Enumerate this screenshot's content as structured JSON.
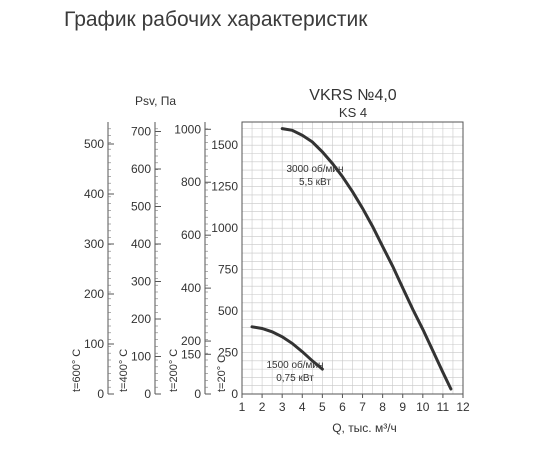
{
  "page": {
    "title": "График рабочих характеристик"
  },
  "chart_data": {
    "type": "line",
    "title": "VKRS №4,0",
    "subtitle": "KS 4",
    "xlabel": "Q, тыс. м³/ч",
    "ylabel": "Psv, Па",
    "xlim": [
      1,
      12
    ],
    "ylim": [
      0,
      1640
    ],
    "grid": true,
    "x_ticks": [
      1,
      2,
      3,
      4,
      5,
      6,
      7,
      8,
      9,
      10,
      11,
      12
    ],
    "y_ticks": [
      0,
      250,
      500,
      750,
      1000,
      1250,
      1500
    ],
    "series": [
      {
        "name": "3000 об/мин 5,5 кВт",
        "label_lines": [
          "3000 об/мин",
          "5,5 кВт"
        ],
        "x": [
          3.0,
          3.5,
          4.0,
          4.5,
          5.0,
          5.5,
          6.0,
          6.5,
          7.0,
          7.5,
          8.0,
          8.5,
          9.0,
          9.5,
          10.0,
          10.5,
          11.0,
          11.4
        ],
        "values": [
          1600,
          1590,
          1560,
          1520,
          1460,
          1390,
          1310,
          1220,
          1120,
          1010,
          890,
          770,
          640,
          510,
          390,
          260,
          130,
          30
        ],
        "color": "#333333"
      },
      {
        "name": "1500 об/мин 0,75 кВт",
        "label_lines": [
          "1500 об/мин",
          "0,75 кВт"
        ],
        "x": [
          1.5,
          2.0,
          2.5,
          3.0,
          3.5,
          4.0,
          4.5,
          5.0
        ],
        "values": [
          405,
          395,
          375,
          345,
          305,
          255,
          200,
          150
        ],
        "color": "#333333"
      }
    ],
    "extra_axes": [
      {
        "label": "t=600° C",
        "ticks": [
          0,
          100,
          200,
          300,
          400,
          500
        ]
      },
      {
        "label": "t=400° C",
        "ticks": [
          0,
          100,
          200,
          300,
          400,
          500,
          600,
          700
        ]
      },
      {
        "label": "t=200° C",
        "ticks": [
          0,
          150,
          200,
          400,
          600,
          800,
          1000
        ]
      },
      {
        "label": "t=20° C",
        "ticks": [
          0,
          250,
          500,
          750,
          1000,
          1250,
          1500
        ]
      }
    ]
  }
}
